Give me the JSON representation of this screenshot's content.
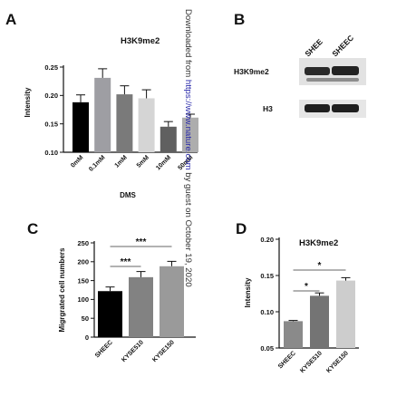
{
  "panels": {
    "a": "A",
    "b": "B",
    "c": "C",
    "d": "D"
  },
  "watermark": {
    "prefix": "Downloaded from ",
    "link": "https://www.nature.com",
    "suffix": " by guest on October 19, 2020"
  },
  "blot": {
    "lanes": [
      "SHEE",
      "SHEEC"
    ],
    "rows": [
      "H3K9me2",
      "H3"
    ]
  },
  "chart_data": [
    {
      "id": "A",
      "type": "bar",
      "title": "H3K9me2",
      "xlabel": "DMS",
      "ylabel": "Intensity",
      "ylim": [
        0.1,
        0.25
      ],
      "yticks": [
        "0.10",
        "0.15",
        "0.20",
        "0.25"
      ],
      "categories": [
        "0mM",
        "0.1mM",
        "1mM",
        "5mM",
        "10mM",
        "50mM"
      ],
      "values": [
        0.188,
        0.231,
        0.202,
        0.195,
        0.145,
        0.161
      ],
      "errors": [
        0.013,
        0.016,
        0.015,
        0.015,
        0.009,
        0.006
      ],
      "colors": [
        "#000000",
        "#9e9ea3",
        "#7a7a7a",
        "#d5d5d5",
        "#606060",
        "#adadad"
      ]
    },
    {
      "id": "C",
      "type": "bar",
      "title": "",
      "xlabel": "",
      "ylabel": "Migrgrated cell numbers",
      "ylim": [
        0,
        250
      ],
      "yticks": [
        "0",
        "50",
        "100",
        "150",
        "200",
        "250"
      ],
      "categories": [
        "SHEEC",
        "KYSE510",
        "KYSE150"
      ],
      "values": [
        122,
        159,
        188
      ],
      "errors": [
        11,
        15,
        13
      ],
      "colors": [
        "#000000",
        "#828282",
        "#9a9a9a"
      ],
      "significance": [
        {
          "from": 0,
          "to": 1,
          "label": "***"
        },
        {
          "from": 0,
          "to": 2,
          "label": "***"
        }
      ]
    },
    {
      "id": "D",
      "type": "bar",
      "title": "H3K9me2",
      "xlabel": "",
      "ylabel": "Intensity",
      "ylim": [
        0.05,
        0.2
      ],
      "yticks": [
        "0.05",
        "0.10",
        "0.15",
        "0.20"
      ],
      "categories": [
        "SHEEC",
        "KYSE510",
        "KYSE150"
      ],
      "values": [
        0.087,
        0.122,
        0.143
      ],
      "errors": [
        0.001,
        0.004,
        0.004
      ],
      "colors": [
        "#8a8a8a",
        "#747474",
        "#cdcdcd"
      ],
      "significance": [
        {
          "from": 0,
          "to": 1,
          "label": "*"
        },
        {
          "from": 0,
          "to": 2,
          "label": "*"
        }
      ]
    }
  ]
}
